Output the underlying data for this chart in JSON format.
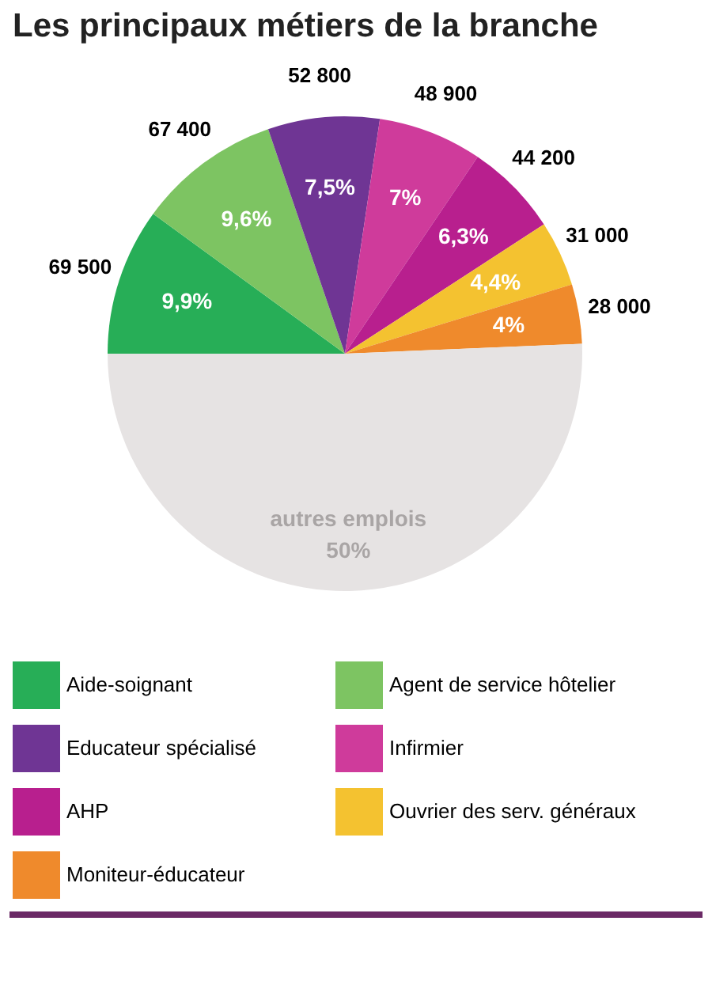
{
  "chart_data": {
    "type": "pie",
    "title": "Les principaux métiers de la branche",
    "categories": [
      "Aide-soignant",
      "Agent de service hôtelier",
      "Educateur spécialisé",
      "Infirmier",
      "AHP",
      "Ouvrier des serv. généraux",
      "Moniteur-éducateur",
      "autres emplois"
    ],
    "values": [
      9.9,
      9.6,
      7.5,
      7,
      6.3,
      4.4,
      4,
      50
    ],
    "colors": [
      "#27ae57",
      "#7dc462",
      "#6f3594",
      "#cf3b9b",
      "#b81f8e",
      "#f4c230",
      "#ef8a2c",
      "#e6e3e3"
    ],
    "value_labels": [
      "9,9%",
      "9,6%",
      "7,5%",
      "7%",
      "6,3%",
      "4,4%",
      "4%",
      "50%"
    ],
    "annotations": [
      {
        "text": "69 500",
        "x": "Aide-soignant"
      },
      {
        "text": "67 400",
        "x": "Agent de service hôtelier"
      },
      {
        "text": "52 800",
        "x": "Educateur spécialisé"
      },
      {
        "text": "48 900",
        "x": "Infirmier"
      },
      {
        "text": "44 200",
        "x": "AHP"
      },
      {
        "text": "31 000",
        "x": "Ouvrier des serv. généraux"
      },
      {
        "text": "28 000",
        "x": "Moniteur-éducateur"
      }
    ],
    "legend": "bottom"
  }
}
